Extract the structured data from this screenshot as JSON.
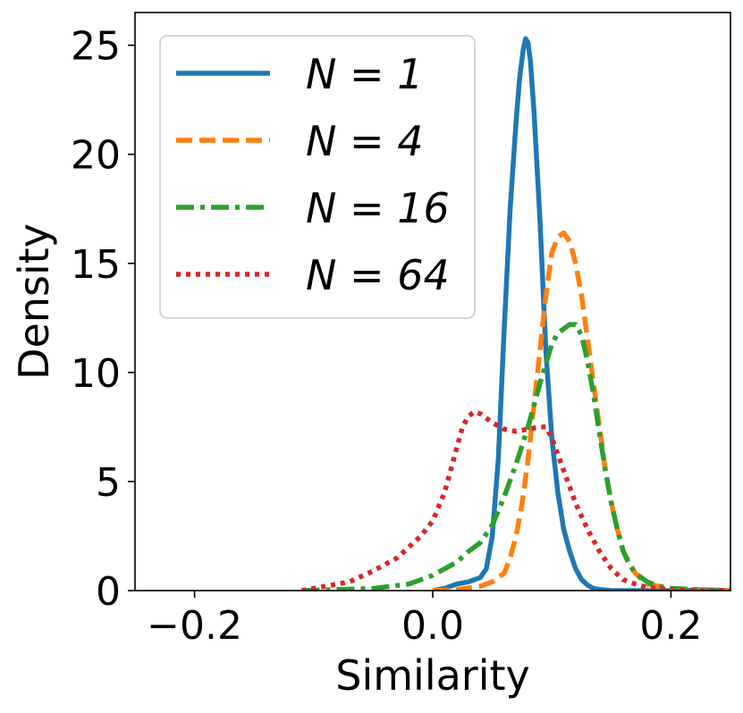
{
  "chart_data": {
    "type": "line",
    "title": "",
    "xlabel": "Similarity",
    "ylabel": "Density",
    "xlim": [
      -0.25,
      0.25
    ],
    "ylim": [
      0,
      26.5
    ],
    "xticks": [
      -0.2,
      0.0,
      0.2
    ],
    "xtick_labels": [
      "−0.2",
      "0.0",
      "0.2"
    ],
    "yticks": [
      0,
      5,
      10,
      15,
      20,
      25
    ],
    "ytick_labels": [
      "0",
      "5",
      "10",
      "15",
      "20",
      "25"
    ],
    "grid": false,
    "legend": {
      "placement": "top-left"
    },
    "series": [
      {
        "name": "N = 1",
        "color": "#1f77b4",
        "dash": "solid",
        "x": [
          0.0,
          0.01,
          0.02,
          0.03,
          0.04,
          0.045,
          0.05,
          0.055,
          0.06,
          0.065,
          0.07,
          0.073,
          0.076,
          0.078,
          0.08,
          0.082,
          0.085,
          0.09,
          0.095,
          0.1,
          0.105,
          0.11,
          0.115,
          0.12,
          0.125,
          0.13,
          0.135,
          0.14,
          0.15,
          0.17,
          0.2,
          0.25
        ],
        "y": [
          0.0,
          0.1,
          0.3,
          0.4,
          0.6,
          1.0,
          2.5,
          6.0,
          12.0,
          17.5,
          21.5,
          23.5,
          24.8,
          25.3,
          25.1,
          24.3,
          22.0,
          17.0,
          11.0,
          7.0,
          4.5,
          2.8,
          1.8,
          1.0,
          0.5,
          0.25,
          0.1,
          0.05,
          0.0,
          0.0,
          0.0,
          0.0
        ]
      },
      {
        "name": "N = 4",
        "color": "#ff7f0e",
        "dash": "dashed",
        "x": [
          0.0,
          0.02,
          0.04,
          0.05,
          0.06,
          0.065,
          0.07,
          0.075,
          0.08,
          0.085,
          0.09,
          0.095,
          0.1,
          0.105,
          0.11,
          0.115,
          0.12,
          0.125,
          0.13,
          0.135,
          0.14,
          0.145,
          0.15,
          0.155,
          0.16,
          0.17,
          0.18,
          0.2,
          0.22,
          0.25
        ],
        "y": [
          0.0,
          0.05,
          0.2,
          0.4,
          0.8,
          1.5,
          2.5,
          4.0,
          6.0,
          8.5,
          11.0,
          13.5,
          15.5,
          16.2,
          16.4,
          16.0,
          15.0,
          13.5,
          11.5,
          9.5,
          7.5,
          5.5,
          4.0,
          2.8,
          1.8,
          0.8,
          0.3,
          0.1,
          0.05,
          0.0
        ]
      },
      {
        "name": "N = 16",
        "color": "#2ca02c",
        "dash": "dashdot",
        "x": [
          -0.11,
          -0.08,
          -0.05,
          -0.02,
          0.0,
          0.02,
          0.03,
          0.04,
          0.05,
          0.06,
          0.07,
          0.08,
          0.09,
          0.1,
          0.105,
          0.11,
          0.115,
          0.12,
          0.125,
          0.13,
          0.135,
          0.14,
          0.145,
          0.15,
          0.155,
          0.16,
          0.165,
          0.17,
          0.18,
          0.19,
          0.2,
          0.22,
          0.25
        ],
        "y": [
          0.0,
          0.05,
          0.1,
          0.3,
          0.7,
          1.3,
          1.8,
          2.2,
          3.0,
          4.3,
          5.8,
          7.5,
          9.5,
          11.3,
          11.8,
          12.0,
          12.2,
          12.2,
          11.7,
          10.5,
          9.0,
          7.2,
          5.5,
          4.0,
          2.8,
          1.8,
          1.2,
          0.8,
          0.4,
          0.2,
          0.1,
          0.05,
          0.0
        ]
      },
      {
        "name": "N = 64",
        "color": "#d62728",
        "dash": "dotted",
        "x": [
          -0.11,
          -0.09,
          -0.07,
          -0.05,
          -0.03,
          -0.01,
          0.0,
          0.01,
          0.02,
          0.025,
          0.03,
          0.035,
          0.04,
          0.05,
          0.06,
          0.07,
          0.08,
          0.09,
          0.095,
          0.1,
          0.11,
          0.12,
          0.13,
          0.14,
          0.15,
          0.16,
          0.17,
          0.18,
          0.2,
          0.22,
          0.25
        ],
        "y": [
          0.0,
          0.2,
          0.4,
          0.9,
          1.5,
          2.5,
          3.2,
          4.5,
          6.5,
          7.5,
          8.0,
          8.2,
          8.1,
          7.7,
          7.4,
          7.3,
          7.4,
          7.5,
          7.5,
          7.0,
          5.5,
          4.0,
          2.8,
          1.8,
          1.0,
          0.5,
          0.3,
          0.15,
          0.05,
          0.02,
          0.0
        ]
      }
    ]
  }
}
